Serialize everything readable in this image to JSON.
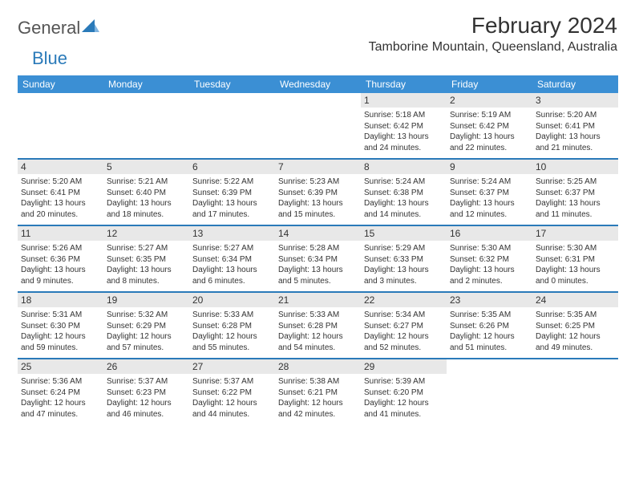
{
  "logo": {
    "text1": "General",
    "text2": "Blue"
  },
  "title": "February 2024",
  "location": "Tamborine Mountain, Queensland, Australia",
  "colors": {
    "header_bg": "#3b8fd4",
    "header_text": "#ffffff",
    "divider": "#2a7ab9",
    "daynum_bg": "#e8e8e8",
    "text": "#333333",
    "logo_accent": "#2a7ab9"
  },
  "day_headers": [
    "Sunday",
    "Monday",
    "Tuesday",
    "Wednesday",
    "Thursday",
    "Friday",
    "Saturday"
  ],
  "weeks": [
    [
      {
        "n": "",
        "sr": "",
        "ss": "",
        "dl1": "",
        "dl2": ""
      },
      {
        "n": "",
        "sr": "",
        "ss": "",
        "dl1": "",
        "dl2": ""
      },
      {
        "n": "",
        "sr": "",
        "ss": "",
        "dl1": "",
        "dl2": ""
      },
      {
        "n": "",
        "sr": "",
        "ss": "",
        "dl1": "",
        "dl2": ""
      },
      {
        "n": "1",
        "sr": "Sunrise: 5:18 AM",
        "ss": "Sunset: 6:42 PM",
        "dl1": "Daylight: 13 hours",
        "dl2": "and 24 minutes."
      },
      {
        "n": "2",
        "sr": "Sunrise: 5:19 AM",
        "ss": "Sunset: 6:42 PM",
        "dl1": "Daylight: 13 hours",
        "dl2": "and 22 minutes."
      },
      {
        "n": "3",
        "sr": "Sunrise: 5:20 AM",
        "ss": "Sunset: 6:41 PM",
        "dl1": "Daylight: 13 hours",
        "dl2": "and 21 minutes."
      }
    ],
    [
      {
        "n": "4",
        "sr": "Sunrise: 5:20 AM",
        "ss": "Sunset: 6:41 PM",
        "dl1": "Daylight: 13 hours",
        "dl2": "and 20 minutes."
      },
      {
        "n": "5",
        "sr": "Sunrise: 5:21 AM",
        "ss": "Sunset: 6:40 PM",
        "dl1": "Daylight: 13 hours",
        "dl2": "and 18 minutes."
      },
      {
        "n": "6",
        "sr": "Sunrise: 5:22 AM",
        "ss": "Sunset: 6:39 PM",
        "dl1": "Daylight: 13 hours",
        "dl2": "and 17 minutes."
      },
      {
        "n": "7",
        "sr": "Sunrise: 5:23 AM",
        "ss": "Sunset: 6:39 PM",
        "dl1": "Daylight: 13 hours",
        "dl2": "and 15 minutes."
      },
      {
        "n": "8",
        "sr": "Sunrise: 5:24 AM",
        "ss": "Sunset: 6:38 PM",
        "dl1": "Daylight: 13 hours",
        "dl2": "and 14 minutes."
      },
      {
        "n": "9",
        "sr": "Sunrise: 5:24 AM",
        "ss": "Sunset: 6:37 PM",
        "dl1": "Daylight: 13 hours",
        "dl2": "and 12 minutes."
      },
      {
        "n": "10",
        "sr": "Sunrise: 5:25 AM",
        "ss": "Sunset: 6:37 PM",
        "dl1": "Daylight: 13 hours",
        "dl2": "and 11 minutes."
      }
    ],
    [
      {
        "n": "11",
        "sr": "Sunrise: 5:26 AM",
        "ss": "Sunset: 6:36 PM",
        "dl1": "Daylight: 13 hours",
        "dl2": "and 9 minutes."
      },
      {
        "n": "12",
        "sr": "Sunrise: 5:27 AM",
        "ss": "Sunset: 6:35 PM",
        "dl1": "Daylight: 13 hours",
        "dl2": "and 8 minutes."
      },
      {
        "n": "13",
        "sr": "Sunrise: 5:27 AM",
        "ss": "Sunset: 6:34 PM",
        "dl1": "Daylight: 13 hours",
        "dl2": "and 6 minutes."
      },
      {
        "n": "14",
        "sr": "Sunrise: 5:28 AM",
        "ss": "Sunset: 6:34 PM",
        "dl1": "Daylight: 13 hours",
        "dl2": "and 5 minutes."
      },
      {
        "n": "15",
        "sr": "Sunrise: 5:29 AM",
        "ss": "Sunset: 6:33 PM",
        "dl1": "Daylight: 13 hours",
        "dl2": "and 3 minutes."
      },
      {
        "n": "16",
        "sr": "Sunrise: 5:30 AM",
        "ss": "Sunset: 6:32 PM",
        "dl1": "Daylight: 13 hours",
        "dl2": "and 2 minutes."
      },
      {
        "n": "17",
        "sr": "Sunrise: 5:30 AM",
        "ss": "Sunset: 6:31 PM",
        "dl1": "Daylight: 13 hours",
        "dl2": "and 0 minutes."
      }
    ],
    [
      {
        "n": "18",
        "sr": "Sunrise: 5:31 AM",
        "ss": "Sunset: 6:30 PM",
        "dl1": "Daylight: 12 hours",
        "dl2": "and 59 minutes."
      },
      {
        "n": "19",
        "sr": "Sunrise: 5:32 AM",
        "ss": "Sunset: 6:29 PM",
        "dl1": "Daylight: 12 hours",
        "dl2": "and 57 minutes."
      },
      {
        "n": "20",
        "sr": "Sunrise: 5:33 AM",
        "ss": "Sunset: 6:28 PM",
        "dl1": "Daylight: 12 hours",
        "dl2": "and 55 minutes."
      },
      {
        "n": "21",
        "sr": "Sunrise: 5:33 AM",
        "ss": "Sunset: 6:28 PM",
        "dl1": "Daylight: 12 hours",
        "dl2": "and 54 minutes."
      },
      {
        "n": "22",
        "sr": "Sunrise: 5:34 AM",
        "ss": "Sunset: 6:27 PM",
        "dl1": "Daylight: 12 hours",
        "dl2": "and 52 minutes."
      },
      {
        "n": "23",
        "sr": "Sunrise: 5:35 AM",
        "ss": "Sunset: 6:26 PM",
        "dl1": "Daylight: 12 hours",
        "dl2": "and 51 minutes."
      },
      {
        "n": "24",
        "sr": "Sunrise: 5:35 AM",
        "ss": "Sunset: 6:25 PM",
        "dl1": "Daylight: 12 hours",
        "dl2": "and 49 minutes."
      }
    ],
    [
      {
        "n": "25",
        "sr": "Sunrise: 5:36 AM",
        "ss": "Sunset: 6:24 PM",
        "dl1": "Daylight: 12 hours",
        "dl2": "and 47 minutes."
      },
      {
        "n": "26",
        "sr": "Sunrise: 5:37 AM",
        "ss": "Sunset: 6:23 PM",
        "dl1": "Daylight: 12 hours",
        "dl2": "and 46 minutes."
      },
      {
        "n": "27",
        "sr": "Sunrise: 5:37 AM",
        "ss": "Sunset: 6:22 PM",
        "dl1": "Daylight: 12 hours",
        "dl2": "and 44 minutes."
      },
      {
        "n": "28",
        "sr": "Sunrise: 5:38 AM",
        "ss": "Sunset: 6:21 PM",
        "dl1": "Daylight: 12 hours",
        "dl2": "and 42 minutes."
      },
      {
        "n": "29",
        "sr": "Sunrise: 5:39 AM",
        "ss": "Sunset: 6:20 PM",
        "dl1": "Daylight: 12 hours",
        "dl2": "and 41 minutes."
      },
      {
        "n": "",
        "sr": "",
        "ss": "",
        "dl1": "",
        "dl2": ""
      },
      {
        "n": "",
        "sr": "",
        "ss": "",
        "dl1": "",
        "dl2": ""
      }
    ]
  ]
}
